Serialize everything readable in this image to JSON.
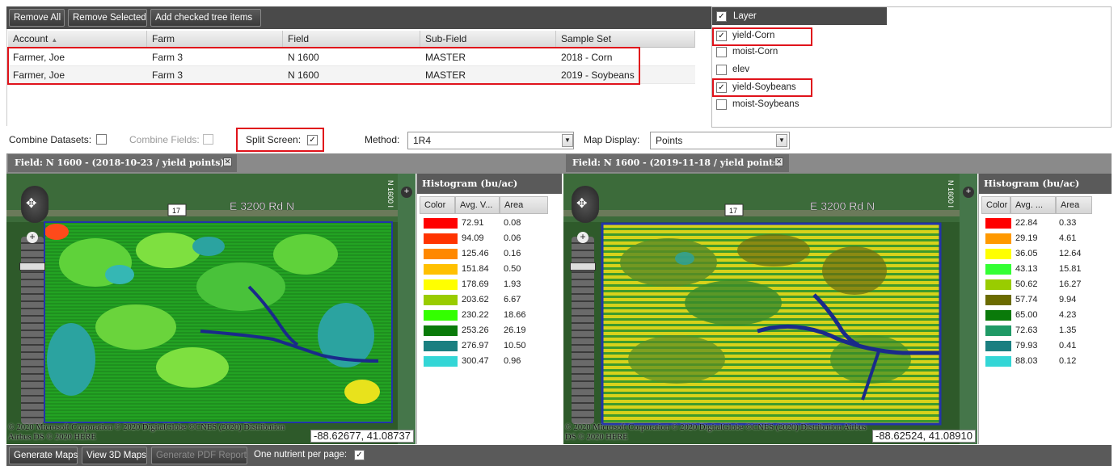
{
  "toolbar": {
    "remove_all": "Remove All",
    "remove_selected": "Remove Selected",
    "add_checked": "Add checked tree items"
  },
  "grid": {
    "columns": [
      "Account",
      "Farm",
      "Field",
      "Sub-Field",
      "Sample Set"
    ],
    "rows": [
      [
        "Farmer, Joe",
        "Farm 3",
        "N 1600",
        "MASTER",
        "2018 - Corn"
      ],
      [
        "Farmer, Joe",
        "Farm 3",
        "N 1600",
        "MASTER",
        "2019 - Soybeans"
      ]
    ]
  },
  "layers": {
    "header": "Layer",
    "items": [
      {
        "label": "yield-Corn",
        "checked": true
      },
      {
        "label": "moist-Corn",
        "checked": false
      },
      {
        "label": "elev",
        "checked": false
      },
      {
        "label": "yield-Soybeans",
        "checked": true
      },
      {
        "label": "moist-Soybeans",
        "checked": false
      }
    ]
  },
  "options": {
    "combine_datasets": "Combine Datasets:",
    "combine_fields": "Combine Fields:",
    "split_screen": "Split Screen:",
    "method_label": "Method:",
    "method_value": "1R4",
    "map_display_label": "Map Display:",
    "map_display_value": "Points"
  },
  "panels": [
    {
      "title": "Field: N 1600 - (2018-10-23 / yield points)",
      "road_label": "E 3200 Rd N",
      "route_shield": "17",
      "side_label": "N 1600 I",
      "copyright": "© 2020 Microsoft Corporation © 2020 DigitalGlobe ©CNES (2020) Distribution Airbus DS © 2020 HERE",
      "coords": "-88.62677, 41.08737",
      "histogram": {
        "title": "Histogram (bu/ac)",
        "headers": [
          "Color",
          "Avg. V...",
          "Area"
        ],
        "rows": [
          {
            "color": "#ff0000",
            "avg": "72.91",
            "area": "0.08"
          },
          {
            "color": "#ff3300",
            "avg": "94.09",
            "area": "0.06"
          },
          {
            "color": "#ff8800",
            "avg": "125.46",
            "area": "0.16"
          },
          {
            "color": "#ffc000",
            "avg": "151.84",
            "area": "0.50"
          },
          {
            "color": "#ffff00",
            "avg": "178.69",
            "area": "1.93"
          },
          {
            "color": "#99cc00",
            "avg": "203.62",
            "area": "6.67"
          },
          {
            "color": "#33ff00",
            "avg": "230.22",
            "area": "18.66"
          },
          {
            "color": "#0a7a0a",
            "avg": "253.26",
            "area": "26.19"
          },
          {
            "color": "#1a7f80",
            "avg": "276.97",
            "area": "10.50"
          },
          {
            "color": "#33d6d6",
            "avg": "300.47",
            "area": "0.96"
          }
        ]
      }
    },
    {
      "title": "Field: N 1600 - (2019-11-18 / yield points)",
      "road_label": "E 3200 Rd N",
      "route_shield": "17",
      "side_label": "N 1600 I",
      "copyright": "© 2020 Microsoft Corporation © 2020 DigitalGlobe ©CNES (2020) Distribution Airbus DS © 2020 HERE",
      "coords": "-88.62524, 41.08910",
      "histogram": {
        "title": "Histogram (bu/ac)",
        "headers": [
          "Color",
          "Avg. ...",
          "Area"
        ],
        "rows": [
          {
            "color": "#ff0000",
            "avg": "22.84",
            "area": "0.33"
          },
          {
            "color": "#ff9900",
            "avg": "29.19",
            "area": "4.61"
          },
          {
            "color": "#ffff00",
            "avg": "36.05",
            "area": "12.64"
          },
          {
            "color": "#33ff33",
            "avg": "43.13",
            "area": "15.81"
          },
          {
            "color": "#99cc00",
            "avg": "50.62",
            "area": "16.27"
          },
          {
            "color": "#6b6b00",
            "avg": "57.74",
            "area": "9.94"
          },
          {
            "color": "#0a7a0a",
            "avg": "65.00",
            "area": "4.23"
          },
          {
            "color": "#1f9a66",
            "avg": "72.63",
            "area": "1.35"
          },
          {
            "color": "#1a7f80",
            "avg": "79.93",
            "area": "0.41"
          },
          {
            "color": "#33d6d6",
            "avg": "88.03",
            "area": "0.12"
          }
        ]
      }
    }
  ],
  "bottom_bar": {
    "generate_maps": "Generate Maps",
    "view_3d": "View 3D Maps",
    "generate_pdf": "Generate PDF Report",
    "one_nutrient": "One nutrient per page:"
  }
}
